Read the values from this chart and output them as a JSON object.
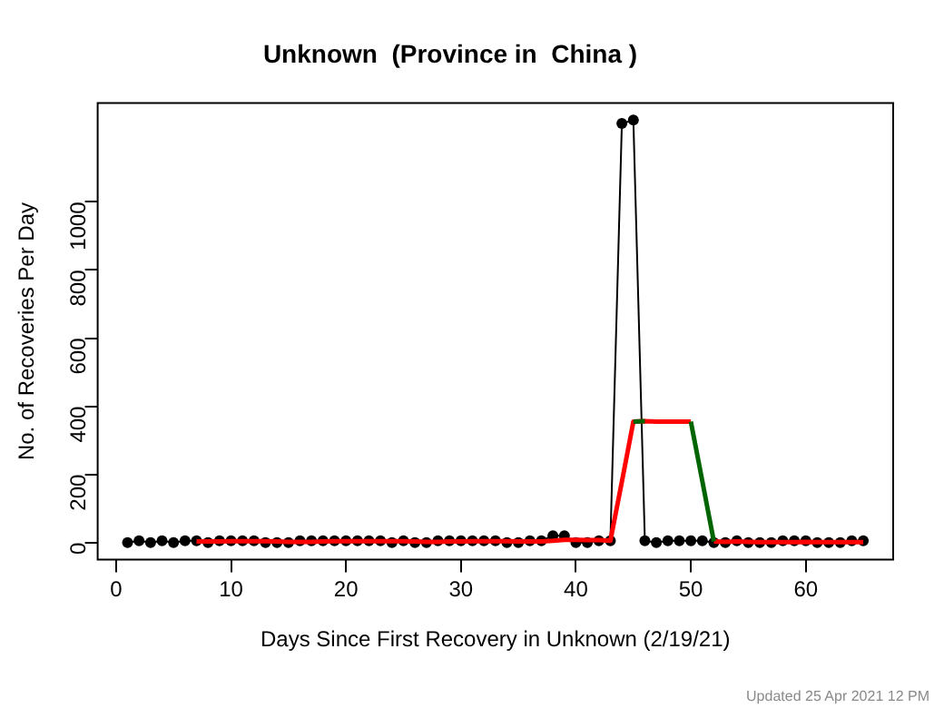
{
  "chart_data": {
    "type": "line",
    "title": "Unknown  (Province in  China )",
    "xlabel": "Days Since First Recovery in Unknown (2/19/21)",
    "ylabel": "No. of Recoveries Per Day",
    "annotations": [
      "Updated  25 Apr 2021 12 PM"
    ],
    "xlim": [
      -1.6,
      67.6
    ],
    "xticks": [
      0,
      10,
      20,
      30,
      40,
      50,
      60
    ],
    "ylim": [
      -50,
      1290
    ],
    "yticks": [
      0,
      200,
      400,
      600,
      800,
      1000
    ],
    "grid": false,
    "legend": false,
    "series": [
      {
        "marker": "circle",
        "color": "#000000",
        "x": [
          1,
          2,
          3,
          4,
          5,
          6,
          7,
          8,
          9,
          10,
          11,
          12,
          13,
          14,
          15,
          16,
          17,
          18,
          19,
          20,
          21,
          22,
          23,
          24,
          25,
          26,
          27,
          28,
          29,
          30,
          31,
          32,
          33,
          34,
          35,
          36,
          37,
          38,
          39,
          40,
          41,
          42,
          43,
          44,
          45,
          46,
          47,
          48,
          49,
          50,
          51,
          52,
          53,
          54,
          55,
          56,
          57,
          58,
          59,
          60,
          61,
          62,
          63,
          64,
          65
        ],
        "values": [
          0,
          5,
          0,
          5,
          0,
          5,
          5,
          0,
          5,
          5,
          5,
          5,
          0,
          0,
          0,
          5,
          5,
          5,
          5,
          5,
          5,
          5,
          5,
          0,
          5,
          0,
          0,
          5,
          5,
          5,
          5,
          5,
          5,
          0,
          0,
          5,
          5,
          20,
          20,
          0,
          0,
          5,
          5,
          1230,
          1240,
          5,
          0,
          5,
          5,
          5,
          5,
          0,
          0,
          5,
          0,
          0,
          0,
          5,
          5,
          5,
          0,
          0,
          0,
          5,
          5
        ]
      },
      {
        "marker": "none",
        "color": "#ff0000",
        "x": [
          7,
          8,
          9,
          10,
          11,
          12,
          13,
          14,
          15,
          16,
          17,
          18,
          19,
          20,
          21,
          22,
          23,
          24,
          25,
          26,
          27,
          28,
          29,
          30,
          31,
          32,
          33,
          34,
          35,
          36,
          37,
          38,
          39,
          40,
          41,
          42,
          43,
          44,
          45,
          46,
          47,
          48,
          49,
          50,
          51,
          52,
          53,
          54,
          55,
          56,
          57,
          58,
          59,
          60,
          61,
          62,
          63,
          64,
          65
        ],
        "values": [
          3,
          3,
          3,
          4,
          4,
          4,
          4,
          3,
          2,
          2,
          2,
          3,
          4,
          4,
          4,
          4,
          4,
          4,
          4,
          3,
          2,
          2,
          3,
          3,
          4,
          4,
          4,
          4,
          3,
          3,
          3,
          5,
          8,
          8,
          7,
          7,
          5,
          178,
          355,
          356,
          355,
          355,
          355,
          355,
          null,
          3,
          2,
          3,
          2,
          1,
          1,
          1,
          1,
          2,
          1,
          1,
          1,
          1,
          1
        ]
      },
      {
        "marker": "none",
        "color": "#006400",
        "x": [
          45,
          46,
          47,
          50,
          51,
          52
        ],
        "values": [
          355,
          356,
          null,
          355,
          180,
          3
        ]
      }
    ]
  }
}
